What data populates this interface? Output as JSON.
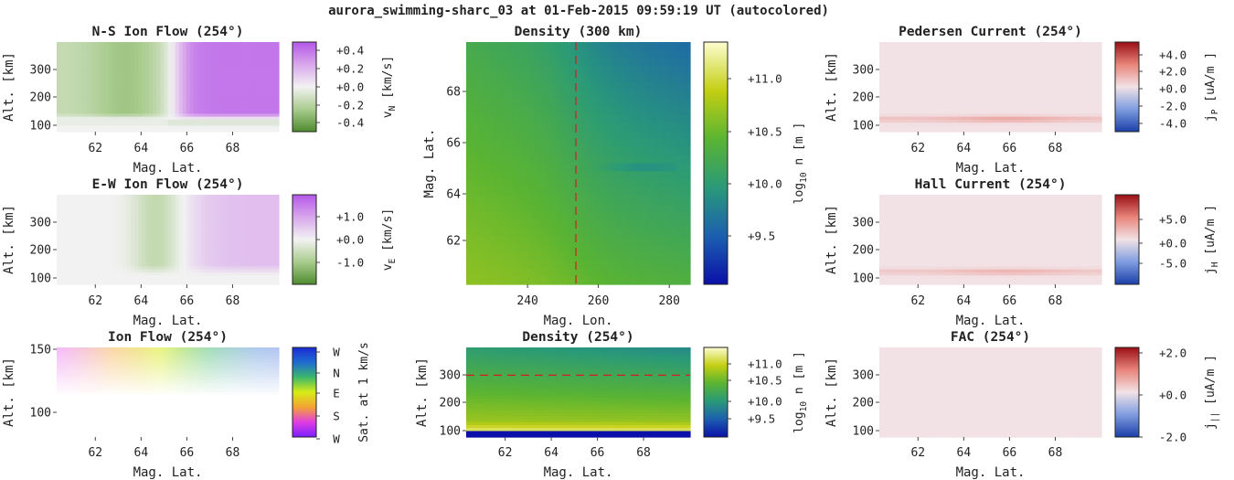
{
  "figure_title": "aurora_swimming-sharc_03 at 01-Feb-2015 09:59:19 UT (autocolored)",
  "chart_data": [
    {
      "id": "ns_ion_flow",
      "type": "heatmap",
      "title": "N-S Ion Flow (254°)",
      "xlabel": "Mag. Lat.",
      "ylabel": "Alt. [km]",
      "xticks": [
        "62",
        "64",
        "66",
        "68"
      ],
      "yticks": [
        "100",
        "200",
        "300"
      ],
      "colorbar": {
        "label_main": "v",
        "label_sub": "N",
        "label_unit": " [km/s]",
        "ticks": [
          "+0.4",
          "+0.2",
          "+0.0",
          "-0.2",
          "-0.4"
        ],
        "colormap": [
          "#4e8b2e",
          "#a9cc8e",
          "#f2f2f2",
          "#d9a7ec",
          "#b457e8"
        ]
      },
      "fill": {
        "mode": "ns"
      }
    },
    {
      "id": "ew_ion_flow",
      "type": "heatmap",
      "title": "E-W Ion Flow (254°)",
      "xlabel": "Mag. Lat.",
      "ylabel": "Alt. [km]",
      "xticks": [
        "62",
        "64",
        "66",
        "68"
      ],
      "yticks": [
        "100",
        "200",
        "300"
      ],
      "colorbar": {
        "label_main": "v",
        "label_sub": "E",
        "label_unit": " [km/s]",
        "ticks": [
          "+1.0",
          "+0.0",
          "-1.0"
        ],
        "colormap": [
          "#4e8b2e",
          "#a9cc8e",
          "#f2f2f2",
          "#d9a7ec",
          "#b457e8"
        ]
      },
      "fill": {
        "mode": "ew"
      }
    },
    {
      "id": "ion_flow",
      "type": "heatmap",
      "title": "Ion Flow (254°)",
      "xlabel": "Mag. Lat.",
      "ylabel": "Alt. [km]",
      "xticks": [
        "62",
        "64",
        "66",
        "68"
      ],
      "yticks": [
        "100",
        "150"
      ],
      "colorbar": {
        "label_main": "Sat. at 1 km/s",
        "label_sub": "",
        "label_unit": "",
        "ticks": [
          "W",
          "N",
          "E",
          "S",
          "W"
        ],
        "colormap": [
          "#7a1fff",
          "#e23de2",
          "#f4a233",
          "#d6ec16",
          "#3db86a",
          "#1f6bd0",
          "#1a2ad6"
        ]
      },
      "fill": {
        "mode": "hue"
      }
    },
    {
      "id": "density_300km",
      "type": "heatmap",
      "title": "Density (300 km)",
      "xlabel": "Mag. Lon.",
      "ylabel": "Mag. Lat.",
      "xticks": [
        "240",
        "260",
        "280"
      ],
      "yticks": [
        "62",
        "64",
        "66",
        "68"
      ],
      "colorbar": {
        "label_main": "log",
        "label_sub": "10",
        "label_unit": " n  [m  ]",
        "ticks": [
          "+11.0",
          "+10.5",
          "+10.0",
          "+9.5"
        ],
        "colormap": [
          "#0a10a8",
          "#1c5fb0",
          "#2a9a78",
          "#5ab432",
          "#c4cf13",
          "#fdfdd0"
        ]
      },
      "marker_lon": 254,
      "fill": {
        "mode": "dens_map"
      }
    },
    {
      "id": "density_254",
      "type": "heatmap",
      "title": "Density (254°)",
      "xlabel": "Mag. Lat.",
      "ylabel": "Alt. [km]",
      "xticks": [
        "62",
        "64",
        "66",
        "68"
      ],
      "yticks": [
        "100",
        "200",
        "300"
      ],
      "colorbar": {
        "label_main": "log",
        "label_sub": "10",
        "label_unit": " n  [m  ]",
        "ticks": [
          "+11.0",
          "+10.5",
          "+10.0",
          "+9.5"
        ],
        "colormap": [
          "#0a10a8",
          "#1c5fb0",
          "#2a9a78",
          "#5ab432",
          "#c4cf13",
          "#fdfdd0"
        ]
      },
      "marker_alt": 300,
      "fill": {
        "mode": "dens_alt"
      }
    },
    {
      "id": "pedersen_current",
      "type": "heatmap",
      "title": "Pedersen Current (254°)",
      "xlabel": "Mag. Lat.",
      "ylabel": "Alt. [km]",
      "xticks": [
        "62",
        "64",
        "66",
        "68"
      ],
      "yticks": [
        "100",
        "200",
        "300"
      ],
      "colorbar": {
        "label_main": "j",
        "label_sub": "P",
        "label_unit": " [uA/m ]",
        "ticks": [
          "+4.0",
          "+2.0",
          "+0.0",
          "-2.0",
          "-4.0"
        ],
        "colormap": [
          "#1b3fa8",
          "#7f9de0",
          "#f2e2e6",
          "#e8847a",
          "#9a0d14"
        ]
      },
      "fill": {
        "mode": "curr",
        "strength": 0.38
      }
    },
    {
      "id": "hall_current",
      "type": "heatmap",
      "title": "Hall Current (254°)",
      "xlabel": "Mag. Lat.",
      "ylabel": "Alt. [km]",
      "xticks": [
        "62",
        "64",
        "66",
        "68"
      ],
      "yticks": [
        "100",
        "200",
        "300"
      ],
      "colorbar": {
        "label_main": "j",
        "label_sub": "H",
        "label_unit": " [uA/m ]",
        "ticks": [
          "+5.0",
          "+0.0",
          "-5.0"
        ],
        "colormap": [
          "#1b3fa8",
          "#7f9de0",
          "#f2e2e6",
          "#e8847a",
          "#9a0d14"
        ]
      },
      "fill": {
        "mode": "curr",
        "strength": 0.3
      }
    },
    {
      "id": "fac",
      "type": "heatmap",
      "title": "FAC (254°)",
      "xlabel": "Mag. Lat.",
      "ylabel": "Alt. [km]",
      "xticks": [
        "62",
        "64",
        "66",
        "68"
      ],
      "yticks": [
        "100",
        "200",
        "300"
      ],
      "colorbar": {
        "label_main": "j",
        "label_sub": "||",
        "label_unit": " [uA/m ]",
        "ticks": [
          "+2.0",
          "+0.0",
          "-2.0"
        ],
        "colormap": [
          "#1b3fa8",
          "#7f9de0",
          "#f2e2e6",
          "#e8847a",
          "#9a0d14"
        ]
      },
      "fill": {
        "mode": "flat"
      }
    }
  ]
}
